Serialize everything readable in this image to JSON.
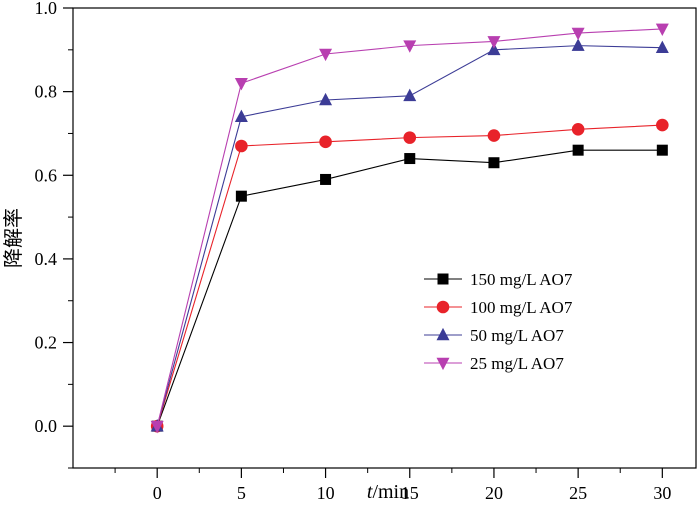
{
  "chart_data": {
    "type": "line",
    "x": [
      0,
      5,
      10,
      15,
      20,
      25,
      30
    ],
    "xlim": [
      -5,
      32
    ],
    "ylim": [
      -0.1,
      1.0
    ],
    "xticks": [
      "0",
      "5",
      "10",
      "15",
      "20",
      "25",
      "30"
    ],
    "yticks": [
      "0.0",
      "0.2",
      "0.4",
      "0.6",
      "0.8",
      "1.0"
    ],
    "xlabel": {
      "italic": "t",
      "rest": "/min"
    },
    "ylabel": "降解率",
    "legend_position": "center-right",
    "series": [
      {
        "name": "150 mg/L AO7",
        "color": "#000000",
        "marker": "square",
        "values": [
          0.0,
          0.55,
          0.59,
          0.64,
          0.63,
          0.66,
          0.66
        ]
      },
      {
        "name": "100 mg/L AO7",
        "color": "#e8232a",
        "marker": "circle",
        "values": [
          0.0,
          0.67,
          0.68,
          0.69,
          0.695,
          0.71,
          0.72
        ]
      },
      {
        "name": "50 mg/L AO7",
        "color": "#3c3c96",
        "marker": "triangle-up",
        "values": [
          0.0,
          0.74,
          0.78,
          0.79,
          0.9,
          0.91,
          0.905
        ]
      },
      {
        "name": "25 mg/L AO7",
        "color": "#b83fb0",
        "marker": "triangle-down",
        "values": [
          0.0,
          0.82,
          0.89,
          0.91,
          0.92,
          0.94,
          0.95
        ]
      }
    ]
  }
}
